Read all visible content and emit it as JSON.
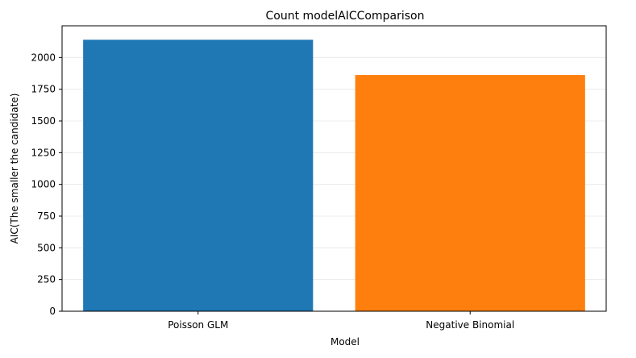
{
  "chart_data": {
    "type": "bar",
    "title": "Count modelAICComparison",
    "xlabel": "Model",
    "ylabel": "AIC(The smaller the candidate)",
    "categories": [
      "Poisson GLM",
      "Negative Binomial"
    ],
    "values": [
      2140,
      1862
    ],
    "colors": [
      "#1f77b4",
      "#ff7f0e"
    ],
    "ylim": [
      0,
      2250
    ],
    "yticks": [
      0,
      250,
      500,
      750,
      1000,
      1250,
      1500,
      1750,
      2000
    ],
    "grid": "horizontal",
    "legend": "none"
  }
}
